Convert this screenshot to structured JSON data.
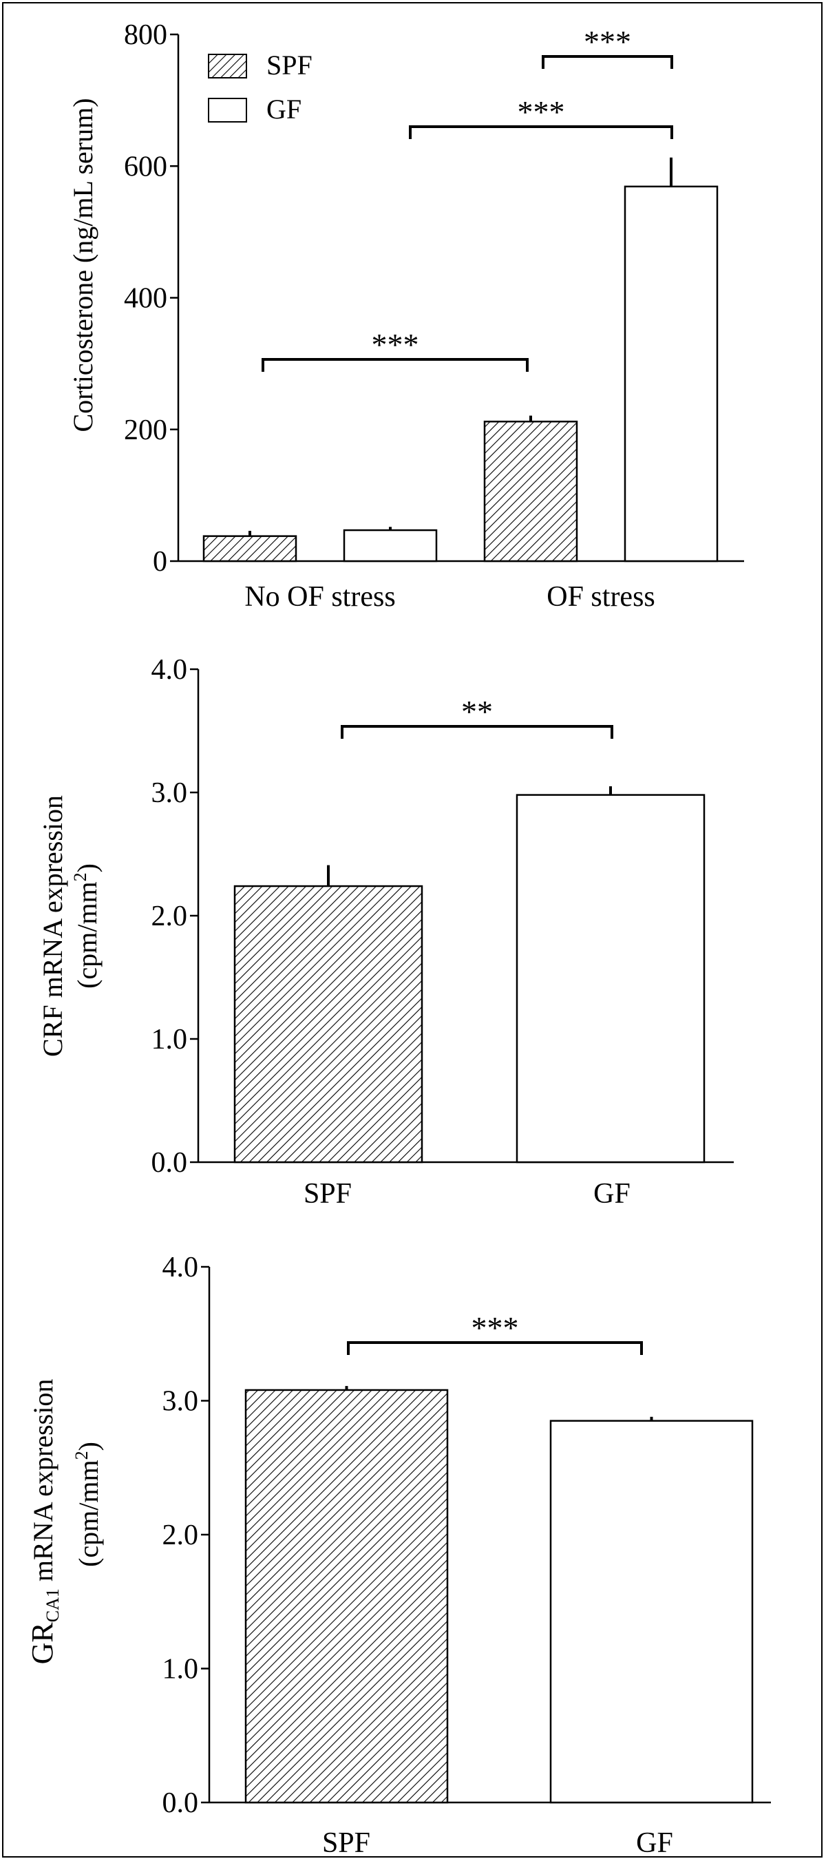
{
  "colors": {
    "axis": "#000000",
    "hatch_fill": "#000000",
    "open_fill": "#ffffff"
  },
  "chart_data": [
    {
      "type": "bar",
      "ylabel": "Corticosterone (ng/mL serum)",
      "ylim": [
        0,
        800
      ],
      "yticks": [
        "0",
        "200",
        "400",
        "600",
        "800"
      ],
      "categories": [
        "No OF stress",
        "OF stress"
      ],
      "legend_position": "top-left",
      "series": [
        {
          "name": "SPF",
          "pattern": "hatched",
          "values": [
            38,
            212
          ],
          "errors": [
            8,
            9
          ]
        },
        {
          "name": "GF",
          "pattern": "open",
          "values": [
            47,
            569
          ],
          "errors": [
            5,
            44
          ]
        }
      ],
      "significance": [
        {
          "from": "No OF stress SPF",
          "to": "OF stress SPF",
          "label": "***"
        },
        {
          "from": "No OF stress GF",
          "to": "OF stress GF",
          "label": "***"
        },
        {
          "from": "OF stress SPF",
          "to": "OF stress GF",
          "label": "***"
        }
      ]
    },
    {
      "type": "bar",
      "ylabel_line1": "CRF mRNA expression",
      "ylabel_line2": "(cpm/mm",
      "ylabel_sup": "2",
      "ylabel_close": ")",
      "ylim": [
        0,
        4
      ],
      "yticks": [
        "0.0",
        "1.0",
        "2.0",
        "3.0",
        "4.0"
      ],
      "categories": [
        "SPF",
        "GF"
      ],
      "patterns": [
        "hatched",
        "open"
      ],
      "values": [
        2.24,
        2.98
      ],
      "errors": [
        0.17,
        0.07
      ],
      "significance": [
        {
          "from": "SPF",
          "to": "GF",
          "label": "**"
        }
      ]
    },
    {
      "type": "bar",
      "ylabel_main": "GR",
      "ylabel_sub": "CA1",
      "ylabel_rest": " mRNA expression",
      "ylabel_line2": "(cpm/mm",
      "ylabel_sup": "2",
      "ylabel_close": ")",
      "ylim": [
        0,
        4
      ],
      "yticks": [
        "0.0",
        "1.0",
        "2.0",
        "3.0",
        "4.0"
      ],
      "categories": [
        "SPF",
        "GF"
      ],
      "patterns": [
        "hatched",
        "open"
      ],
      "values": [
        3.08,
        2.85
      ],
      "errors": [
        0.03,
        0.03
      ],
      "significance": [
        {
          "from": "SPF",
          "to": "GF",
          "label": "***"
        }
      ]
    }
  ]
}
